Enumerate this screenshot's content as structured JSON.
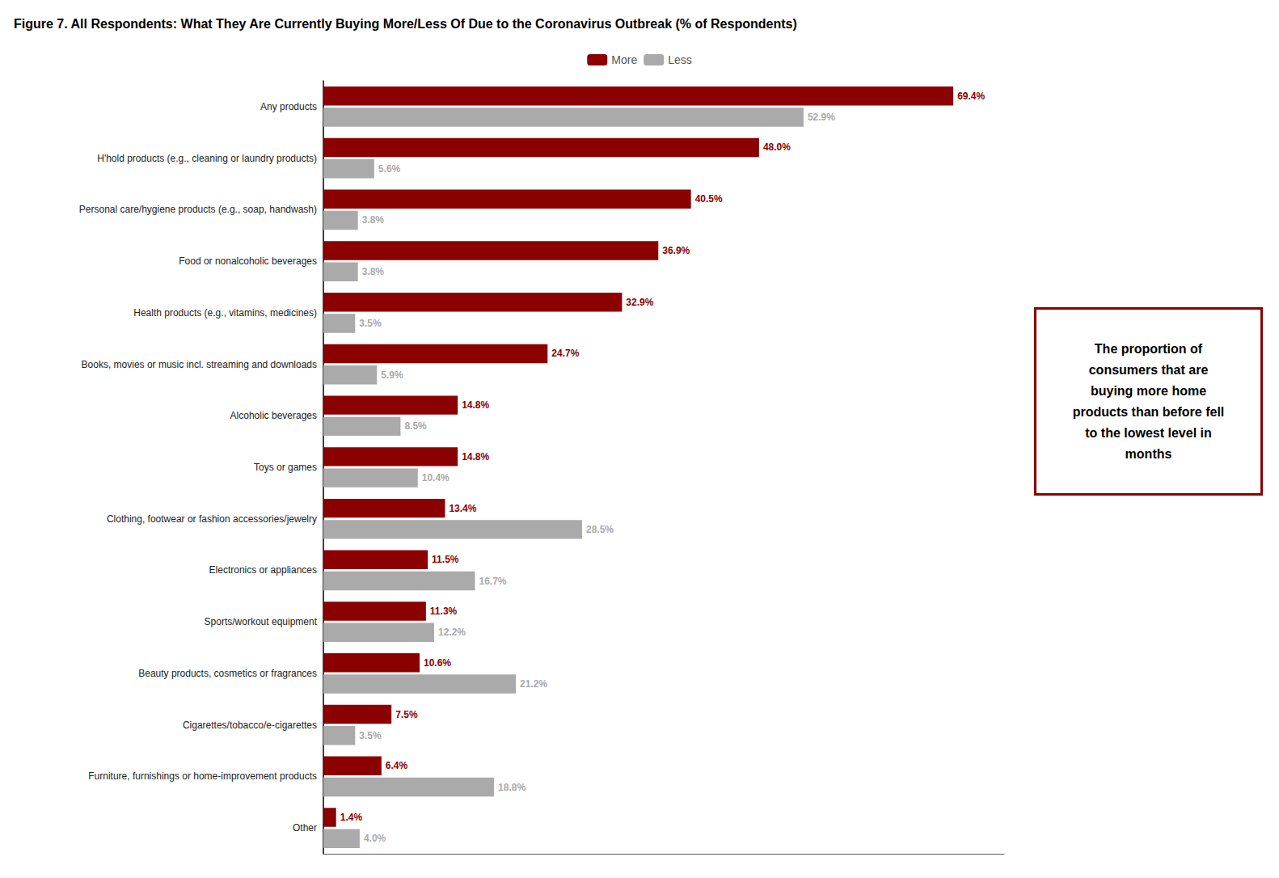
{
  "chart_data": {
    "type": "bar",
    "orientation": "horizontal",
    "title": "Figure 7. All Respondents: What They Are Currently Buying More/Less Of Due to the Coronavirus Outbreak (% of Respondents)",
    "categories": [
      "Any products",
      "H'hold products (e.g., cleaning or laundry products)",
      "Personal care/hygiene products (e.g., soap, handwash)",
      "Food or nonalcoholic beverages",
      "Health products (e.g., vitamins, medicines)",
      "Books, movies or music incl. streaming and downloads",
      "Alcoholic beverages",
      "Toys or games",
      "Clothing, footwear or fashion accessories/jewelry",
      "Electronics or appliances",
      "Sports/workout equipment",
      "Beauty products, cosmetics or fragrances",
      "Cigarettes/tobacco/e-cigarettes",
      "Furniture, furnishings or home-improvement products",
      "Other"
    ],
    "series": [
      {
        "name": "More",
        "color": "#8B0000",
        "values": [
          69.4,
          48.0,
          40.5,
          36.9,
          32.9,
          24.7,
          14.8,
          14.8,
          13.4,
          11.5,
          11.3,
          10.6,
          7.5,
          6.4,
          1.4
        ],
        "value_labels": [
          "69.4%",
          "48.0%",
          "40.5%",
          "36.9%",
          "32.9%",
          "24.7%",
          "14.8%",
          "14.8%",
          "13.4%",
          "11.5%",
          "11.3%",
          "10.6%",
          "7.5%",
          "6.4%",
          "1.4%"
        ]
      },
      {
        "name": "Less",
        "color": "#AAAAAA",
        "values": [
          52.9,
          5.6,
          3.8,
          3.8,
          3.5,
          5.9,
          8.5,
          10.4,
          28.5,
          16.7,
          12.2,
          21.2,
          3.5,
          18.8,
          4.0
        ],
        "value_labels": [
          "52.9%",
          "5.6%",
          "3.8%",
          "3.8%",
          "3.5%",
          "5.9%",
          "8.5%",
          "10.4%",
          "28.5%",
          "16.7%",
          "12.2%",
          "21.2%",
          "3.5%",
          "18.8%",
          "4.0%"
        ]
      }
    ],
    "xlim": [
      0,
      75
    ],
    "grid": false,
    "legend": "top",
    "data_labels": true,
    "tick_labels": "y",
    "annotations": [
      "The proportion of\nconsumers that are\nbuying more home\nproducts than before fell\nto the lowest level in\nmonths"
    ]
  }
}
